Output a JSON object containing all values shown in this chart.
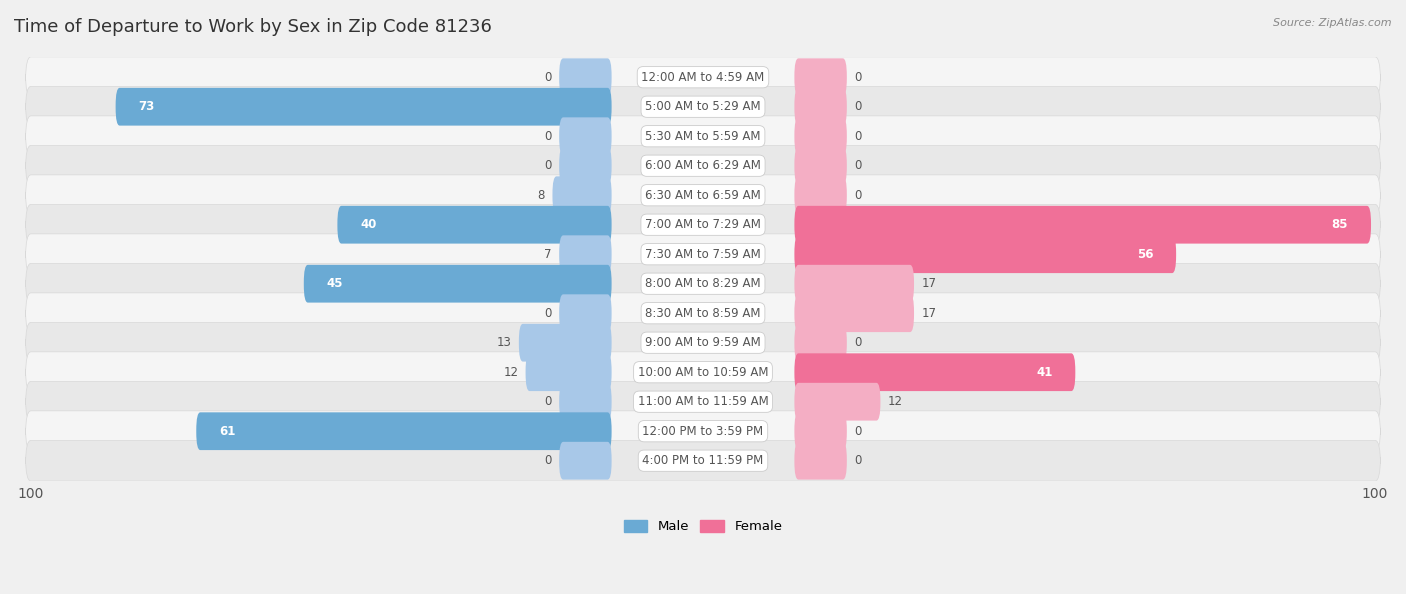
{
  "title": "Time of Departure to Work by Sex in Zip Code 81236",
  "source": "Source: ZipAtlas.com",
  "categories": [
    "12:00 AM to 4:59 AM",
    "5:00 AM to 5:29 AM",
    "5:30 AM to 5:59 AM",
    "6:00 AM to 6:29 AM",
    "6:30 AM to 6:59 AM",
    "7:00 AM to 7:29 AM",
    "7:30 AM to 7:59 AM",
    "8:00 AM to 8:29 AM",
    "8:30 AM to 8:59 AM",
    "9:00 AM to 9:59 AM",
    "10:00 AM to 10:59 AM",
    "11:00 AM to 11:59 AM",
    "12:00 PM to 3:59 PM",
    "4:00 PM to 11:59 PM"
  ],
  "male_values": [
    0,
    73,
    0,
    0,
    8,
    40,
    7,
    45,
    0,
    13,
    12,
    0,
    61,
    0
  ],
  "female_values": [
    0,
    0,
    0,
    0,
    0,
    85,
    56,
    17,
    17,
    0,
    41,
    12,
    0,
    0
  ],
  "male_color_light": "#a8c8e8",
  "male_color_dark": "#6aaad4",
  "female_color_light": "#f4aec4",
  "female_color_dark": "#f07098",
  "male_label": "Male",
  "female_label": "Female",
  "axis_max": 100,
  "stub_size": 7,
  "bg_color": "#f0f0f0",
  "row_light": "#f5f5f5",
  "row_dark": "#e8e8e8",
  "label_text_color": "#555555",
  "title_color": "#333333",
  "source_color": "#888888",
  "cat_label_fontsize": 8.5,
  "val_label_fontsize": 8.5,
  "title_fontsize": 13,
  "source_fontsize": 8
}
